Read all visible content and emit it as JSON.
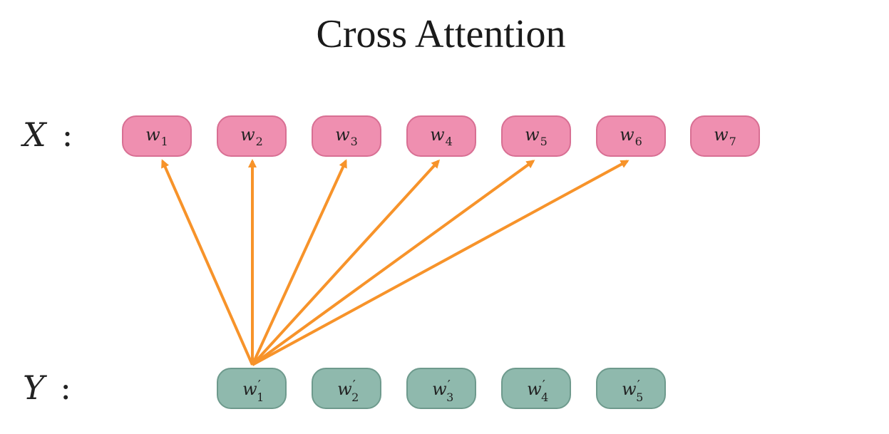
{
  "title": "Cross Attention",
  "rows": {
    "x": {
      "label": "X",
      "colon": ":",
      "tokens": [
        {
          "base": "w",
          "sub": "1"
        },
        {
          "base": "w",
          "sub": "2"
        },
        {
          "base": "w",
          "sub": "3"
        },
        {
          "base": "w",
          "sub": "4"
        },
        {
          "base": "w",
          "sub": "5"
        },
        {
          "base": "w",
          "sub": "6"
        },
        {
          "base": "w",
          "sub": "7"
        }
      ]
    },
    "y": {
      "label": "Y",
      "colon": ":",
      "tokens": [
        {
          "base": "w",
          "prime": "′",
          "sub": "1"
        },
        {
          "base": "w",
          "prime": "′",
          "sub": "2"
        },
        {
          "base": "w",
          "prime": "′",
          "sub": "3"
        },
        {
          "base": "w",
          "prime": "′",
          "sub": "4"
        },
        {
          "base": "w",
          "prime": "′",
          "sub": "5"
        }
      ]
    }
  },
  "arrows": {
    "color": "#f7932a",
    "from": "y.1",
    "to": [
      "x.1",
      "x.2",
      "x.3",
      "x.4",
      "x.5",
      "x.6"
    ]
  },
  "colors": {
    "x_token_fill": "#ef8fb0",
    "y_token_fill": "#8fb9ad"
  }
}
